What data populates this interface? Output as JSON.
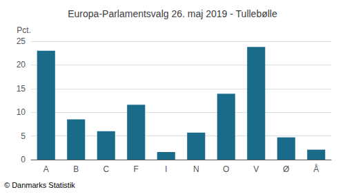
{
  "chart_data": {
    "type": "bar",
    "title": "Europa-Parlamentsvalg 26. maj 2019 - Tullebølle",
    "categories": [
      "A",
      "B",
      "C",
      "F",
      "I",
      "N",
      "O",
      "V",
      "Ø",
      "Å"
    ],
    "values": [
      23.0,
      8.5,
      6.0,
      11.6,
      1.6,
      5.7,
      13.9,
      23.8,
      4.7,
      2.1
    ],
    "color": "#1a6b8a",
    "ylabel": "Pct.",
    "ylim": [
      0,
      25
    ],
    "yticks": [
      0,
      5,
      10,
      15,
      20,
      25
    ],
    "grid": true,
    "footer": "© Danmarks Statistik"
  }
}
